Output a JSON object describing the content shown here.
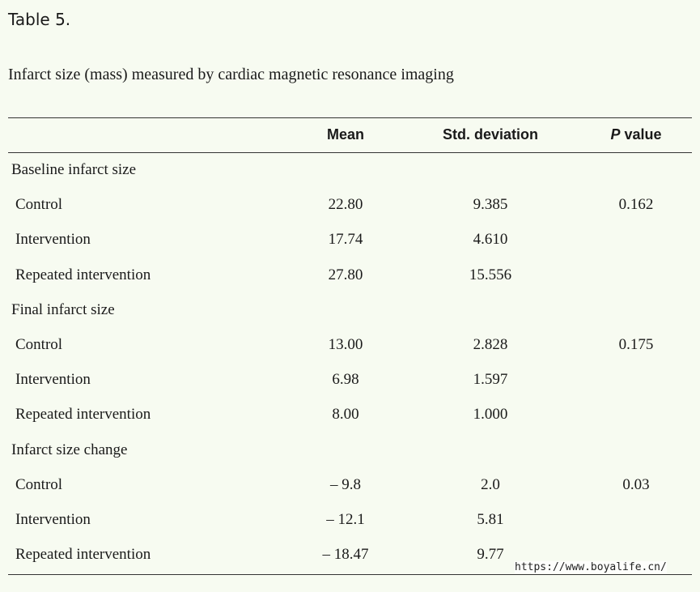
{
  "header": {
    "label": "Table 5.",
    "caption": "Infarct size (mass) measured by cardiac magnetic resonance imaging"
  },
  "table": {
    "columns": [
      "Mean",
      "Std. deviation",
      "P value"
    ],
    "groups": [
      {
        "group": "Baseline infarct size",
        "rows": [
          {
            "label": "Control",
            "mean": "22.80",
            "sd": "9.385",
            "p": "0.162"
          },
          {
            "label": "Intervention",
            "mean": "17.74",
            "sd": "4.610"
          },
          {
            "label": "Repeated intervention",
            "mean": "27.80",
            "sd": "15.556"
          }
        ]
      },
      {
        "group": "Final infarct size",
        "rows": [
          {
            "label": "Control",
            "mean": "13.00",
            "sd": "2.828",
            "p": "0.175"
          },
          {
            "label": "Intervention",
            "mean": "6.98",
            "sd": "1.597"
          },
          {
            "label": "Repeated intervention",
            "mean": "8.00",
            "sd": "1.000"
          }
        ]
      },
      {
        "group": "Infarct size change",
        "rows": [
          {
            "label": "Control",
            "mean": "– 9.8",
            "sd": "2.0",
            "p": "0.03"
          },
          {
            "label": "Intervention",
            "mean": "– 12.1",
            "sd": "5.81"
          },
          {
            "label": "Repeated intervention",
            "mean": "– 18.47",
            "sd": "9.77"
          }
        ]
      }
    ]
  },
  "watermark": "https://www.boyalife.cn/"
}
